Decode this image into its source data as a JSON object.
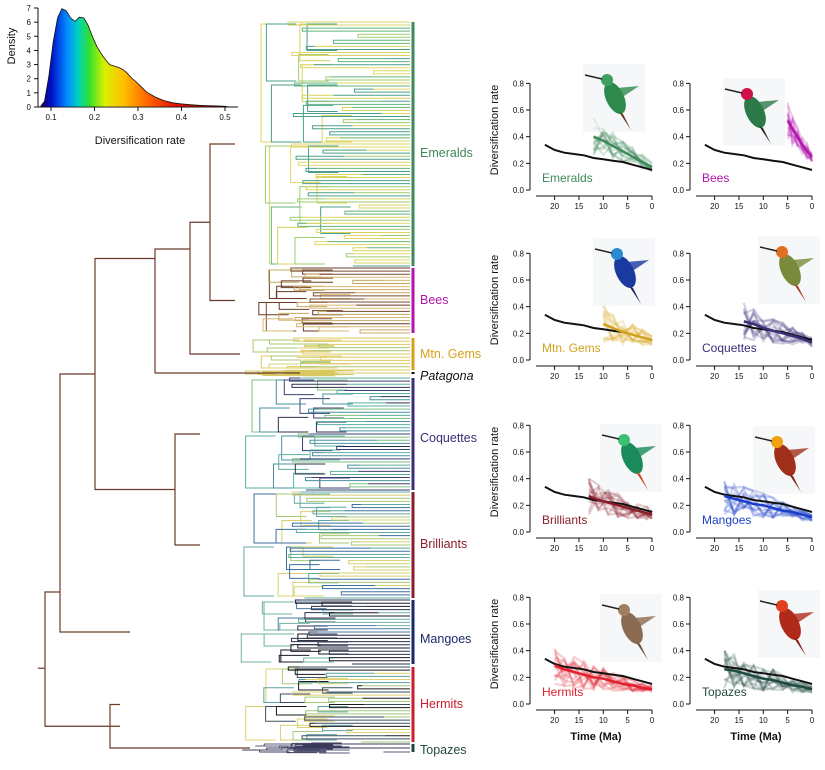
{
  "chart_data": [
    {
      "type": "area",
      "xlabel": "Diversification rate",
      "ylabel": "Density",
      "xlim": [
        0.07,
        0.53
      ],
      "ylim": [
        0,
        7
      ],
      "xticks": [
        "0.1",
        "0.2",
        "0.3",
        "0.4",
        "0.5"
      ],
      "yticks": [
        "0",
        "1",
        "2",
        "3",
        "4",
        "5",
        "6",
        "7"
      ],
      "fill": "spectral gradient (blue → cyan → green → yellow → orange → red) along x",
      "x": [
        0.075,
        0.085,
        0.095,
        0.105,
        0.115,
        0.125,
        0.135,
        0.145,
        0.155,
        0.165,
        0.175,
        0.185,
        0.195,
        0.205,
        0.215,
        0.225,
        0.235,
        0.245,
        0.255,
        0.265,
        0.275,
        0.285,
        0.295,
        0.305,
        0.32,
        0.34,
        0.36,
        0.38,
        0.4,
        0.42,
        0.44,
        0.46,
        0.48,
        0.5,
        0.51
      ],
      "y": [
        0.0,
        0.4,
        2.2,
        4.6,
        6.3,
        6.95,
        6.8,
        6.3,
        6.05,
        6.35,
        6.3,
        5.8,
        5.0,
        4.3,
        3.8,
        3.35,
        3.0,
        2.9,
        2.8,
        2.65,
        2.4,
        2.05,
        1.8,
        1.5,
        1.05,
        0.7,
        0.45,
        0.3,
        0.22,
        0.16,
        0.12,
        0.1,
        0.08,
        0.05,
        0.0
      ]
    },
    {
      "type": "tree",
      "clades": [
        {
          "name": "Emeralds",
          "color": "#3f8a5b"
        },
        {
          "name": "Bees",
          "color": "#b316ad"
        },
        {
          "name": "Mtn. Gems",
          "color": "#d4a21a"
        },
        {
          "name": "Patagona",
          "color": "#111111"
        },
        {
          "name": "Coquettes",
          "color": "#3a2f78"
        },
        {
          "name": "Brilliants",
          "color": "#8a1f2c"
        },
        {
          "name": "Mangoes",
          "color": "#1a2a6a"
        },
        {
          "name": "Hermits",
          "color": "#c81f2f"
        },
        {
          "name": "Topazes",
          "color": "#1e4a3f"
        }
      ]
    },
    {
      "type": "line",
      "panels_xlabel": "Time (Ma)",
      "panels_ylabel": "Diversification rate",
      "xlim": [
        23,
        0
      ],
      "ylim": [
        0,
        0.9
      ],
      "xticks": [
        "20",
        "15",
        "10",
        "5",
        "0"
      ],
      "yticks": [
        "0.0",
        "0.2",
        "0.4",
        "0.6",
        "0.8"
      ],
      "background_series": {
        "x": [
          22,
          20,
          18,
          16,
          14,
          12,
          10,
          8,
          6,
          4,
          2,
          0
        ],
        "y": [
          0.34,
          0.3,
          0.28,
          0.27,
          0.26,
          0.24,
          0.23,
          0.22,
          0.21,
          0.19,
          0.17,
          0.15
        ]
      },
      "panels": [
        {
          "title": "Emeralds",
          "color": "#3f8a5b",
          "x": [
            12,
            10,
            8,
            6,
            4,
            2,
            0
          ],
          "y": [
            0.4,
            0.37,
            0.33,
            0.29,
            0.25,
            0.21,
            0.17
          ]
        },
        {
          "title": "Bees",
          "color": "#b316ad",
          "x": [
            5,
            4,
            3,
            2,
            1,
            0
          ],
          "y": [
            0.52,
            0.46,
            0.4,
            0.34,
            0.29,
            0.25
          ]
        },
        {
          "title": "Mtn. Gems",
          "color": "#d4a21a",
          "x": [
            10,
            8,
            6,
            4,
            2,
            0
          ],
          "y": [
            0.27,
            0.24,
            0.21,
            0.19,
            0.17,
            0.15
          ]
        },
        {
          "title": "Coquettes",
          "color": "#3a2f78",
          "x": [
            14,
            12,
            10,
            8,
            6,
            4,
            2,
            0
          ],
          "y": [
            0.29,
            0.27,
            0.24,
            0.22,
            0.2,
            0.18,
            0.16,
            0.13
          ]
        },
        {
          "title": "Brilliants",
          "color": "#8a1f2c",
          "x": [
            13,
            11,
            9,
            7,
            5,
            3,
            1,
            0
          ],
          "y": [
            0.27,
            0.24,
            0.22,
            0.2,
            0.18,
            0.16,
            0.14,
            0.13
          ]
        },
        {
          "title": "Mangoes",
          "color": "#1a3ec8",
          "x": [
            18,
            16,
            14,
            12,
            10,
            8,
            6,
            4,
            2,
            0
          ],
          "y": [
            0.27,
            0.25,
            0.23,
            0.21,
            0.2,
            0.18,
            0.16,
            0.15,
            0.13,
            0.11
          ]
        },
        {
          "title": "Hermits",
          "color": "#e0202d",
          "x": [
            20,
            18,
            16,
            14,
            12,
            10,
            8,
            6,
            4,
            2,
            0
          ],
          "y": [
            0.29,
            0.26,
            0.24,
            0.22,
            0.2,
            0.19,
            0.17,
            0.15,
            0.14,
            0.12,
            0.11
          ]
        },
        {
          "title": "Topazes",
          "color": "#1e4a3f",
          "x": [
            18,
            16,
            14,
            12,
            10,
            8,
            6,
            4,
            2,
            0
          ],
          "y": [
            0.26,
            0.25,
            0.23,
            0.21,
            0.19,
            0.18,
            0.16,
            0.14,
            0.13,
            0.11
          ]
        }
      ]
    }
  ]
}
